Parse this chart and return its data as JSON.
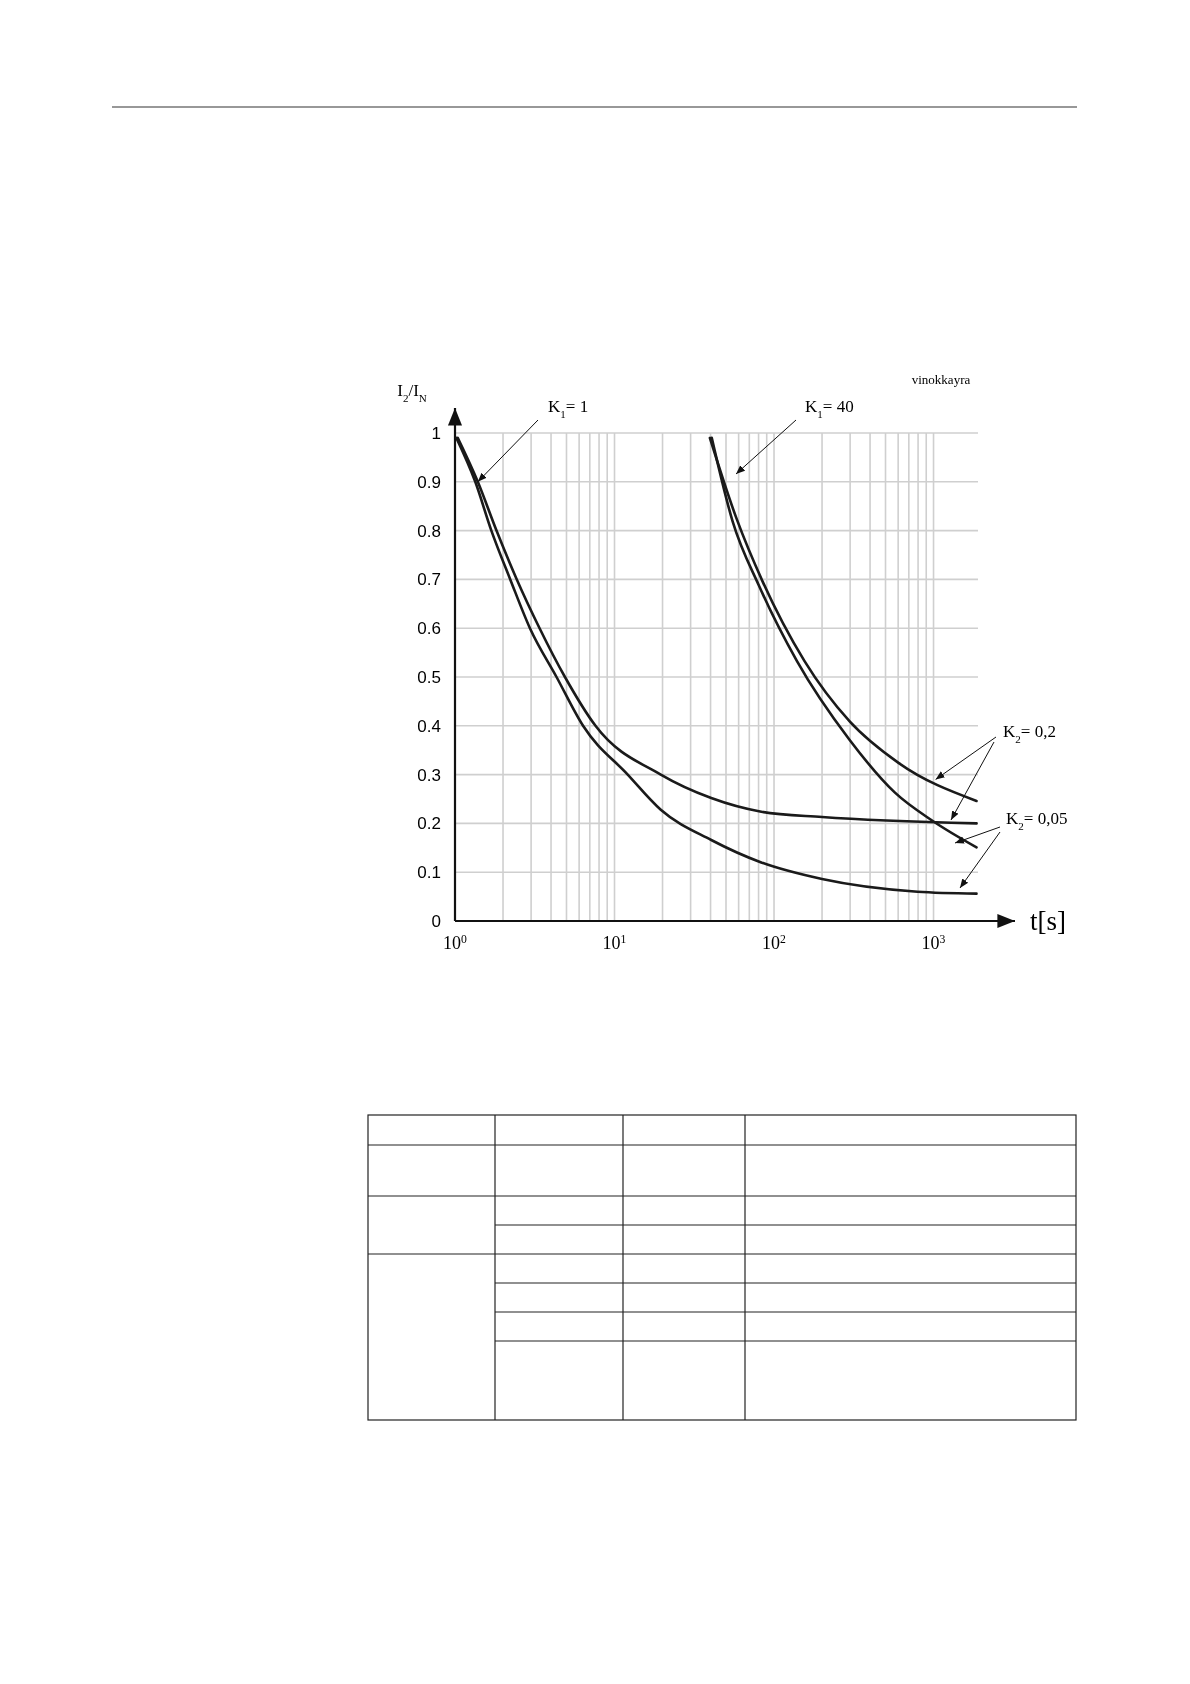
{
  "chart_data": {
    "type": "line",
    "xlabel": "t[s]",
    "ylabel": "I$_{2}$/I$_{N}$",
    "log": "x",
    "grid": true,
    "marker": "none",
    "line_style": "solid",
    "xlim": [
      1,
      1900
    ],
    "ylim": [
      0,
      1
    ],
    "xticks": [
      {
        "value": 1,
        "label": "10$^{0}$"
      },
      {
        "value": 10,
        "label": "10$^{1}$"
      },
      {
        "value": 100,
        "label": "10$^{2}$"
      },
      {
        "value": 1000,
        "label": "10$^{3}$"
      }
    ],
    "yticks": [
      0,
      0.1,
      0.2,
      0.3,
      0.4,
      0.5,
      0.6,
      0.7,
      0.8,
      0.9,
      1
    ],
    "series": [
      {
        "color": "#1a1a1a",
        "x": [
          1.04,
          1.39,
          1.82,
          2.44,
          3.39,
          4.89,
          7.6,
          19.5,
          40.4,
          83.2,
          200,
          1860
        ],
        "values": [
          0.99,
          0.9,
          0.8,
          0.7,
          0.6,
          0.5,
          0.4,
          0.3,
          0.252,
          0.224,
          0.213,
          0.2
        ]
      },
      {
        "color": "#1a1a1a",
        "x": [
          1.02,
          1.34,
          1.69,
          2.22,
          2.95,
          4.33,
          6.35,
          12.1,
          19.5,
          40.4,
          83.2,
          200,
          794,
          1860
        ],
        "values": [
          0.99,
          0.9,
          0.8,
          0.7,
          0.6,
          0.5,
          0.4,
          0.3,
          0.228,
          0.166,
          0.12,
          0.086,
          0.06,
          0.056
        ]
      },
      {
        "color": "#1a1a1a",
        "x": [
          39.6,
          58,
          85,
          155,
          298,
          603,
          1860
        ],
        "values": [
          0.99,
          0.826,
          0.695,
          0.533,
          0.409,
          0.324,
          0.246
        ]
      },
      {
        "color": "#1a1a1a",
        "x": [
          40.7,
          55,
          80.5,
          139,
          298,
          573,
          989,
          1860
        ],
        "values": [
          0.99,
          0.819,
          0.687,
          0.533,
          0.371,
          0.263,
          0.205,
          0.151
        ]
      }
    ],
    "annotations": [
      "vinokkayra",
      {
        "text": "K$_{1}$= 1",
        "x": 1.39,
        "y": 0.9
      },
      "K$_{1}$= 40",
      {
        "text": "K$_{2}$= 0,2",
        "x": 1030,
        "y": 0.29
      },
      "K$_{2}$= 0,05"
    ]
  }
}
